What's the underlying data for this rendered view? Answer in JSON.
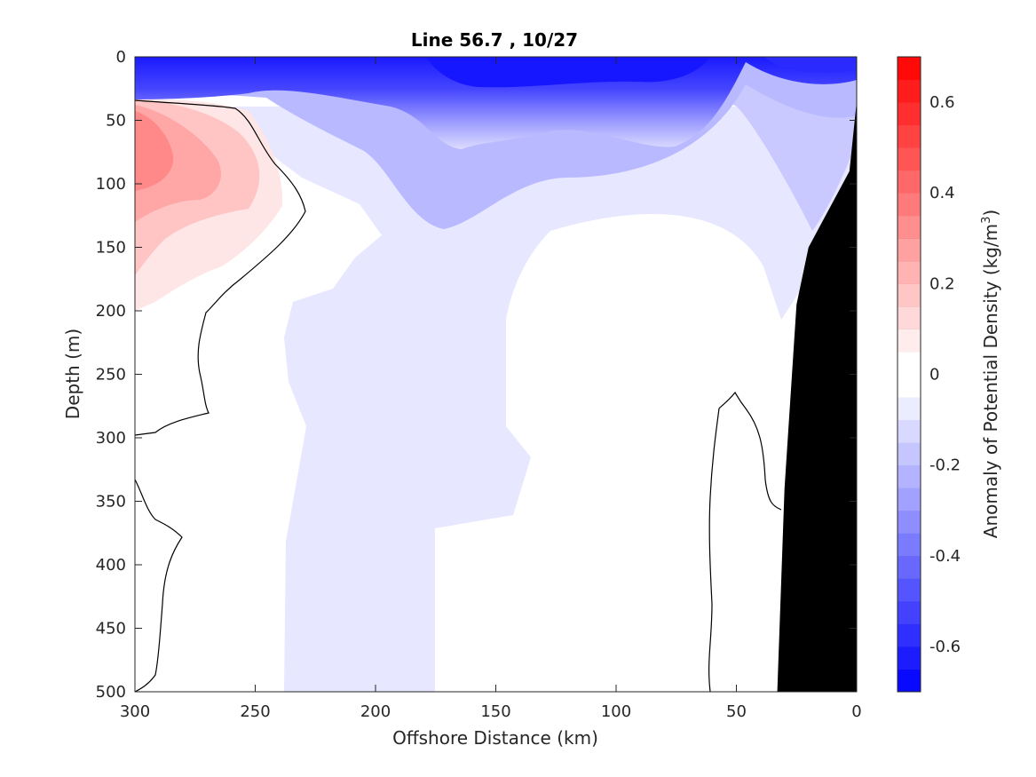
{
  "chart_data": {
    "type": "heatmap",
    "title": "Line 56.7 , 10/27",
    "xlabel": "Offshore Distance (km)",
    "ylabel": "Depth (m)",
    "colorbar_label": "Anomaly of Potential Density (kg/m",
    "colorbar_label_sup": "3",
    "colorbar_label_end": ")",
    "xlim": [
      300,
      0
    ],
    "ylim": [
      500,
      0
    ],
    "x_ticks": [
      300,
      250,
      200,
      150,
      100,
      50,
      0
    ],
    "x_tick_labels": [
      "300",
      "250",
      "200",
      "150",
      "100",
      "50",
      "0"
    ],
    "y_ticks": [
      0,
      50,
      100,
      150,
      200,
      250,
      300,
      350,
      400,
      450,
      500
    ],
    "y_tick_labels": [
      "0",
      "50",
      "100",
      "150",
      "200",
      "250",
      "300",
      "350",
      "400",
      "450",
      "500"
    ],
    "colorbar": {
      "range": [
        -0.7,
        0.7
      ],
      "step": 0.05,
      "ticks": [
        0.6,
        0.4,
        0.2,
        0,
        -0.2,
        -0.4,
        -0.6
      ],
      "tick_labels": [
        "0.6",
        "0.4",
        "0.2",
        "0",
        "-0.2",
        "-0.4",
        "-0.6"
      ],
      "colormap": "blue-white-red",
      "low_color": "#0000ff",
      "mid_color": "#ffffff",
      "high_color": "#ff0000"
    },
    "zero_contour": true,
    "bathymetry_color": "#000000",
    "grid": false,
    "fields": [
      {
        "name": "offshore-warm-anomaly",
        "x_range": [
          300,
          230
        ],
        "depth_range": [
          35,
          200
        ],
        "peak_anomaly": 0.35
      },
      {
        "name": "surface-negative-anomaly",
        "x_range": [
          300,
          0
        ],
        "depth_range": [
          0,
          50
        ],
        "peak_anomaly": -0.7
      },
      {
        "name": "mid-column-light-negative",
        "x_range": [
          240,
          135
        ],
        "depth_range": [
          50,
          500
        ],
        "peak_anomaly": -0.05
      },
      {
        "name": "nearshore-negative-anomaly",
        "x_range": [
          60,
          0
        ],
        "depth_range": [
          0,
          200
        ],
        "peak_anomaly": -0.35
      }
    ],
    "bathymetry": [
      {
        "x": 0,
        "depth": 35
      },
      {
        "x": 3,
        "depth": 90
      },
      {
        "x": 20,
        "depth": 150
      },
      {
        "x": 25,
        "depth": 195
      },
      {
        "x": 30,
        "depth": 340
      },
      {
        "x": 33,
        "depth": 500
      }
    ]
  }
}
